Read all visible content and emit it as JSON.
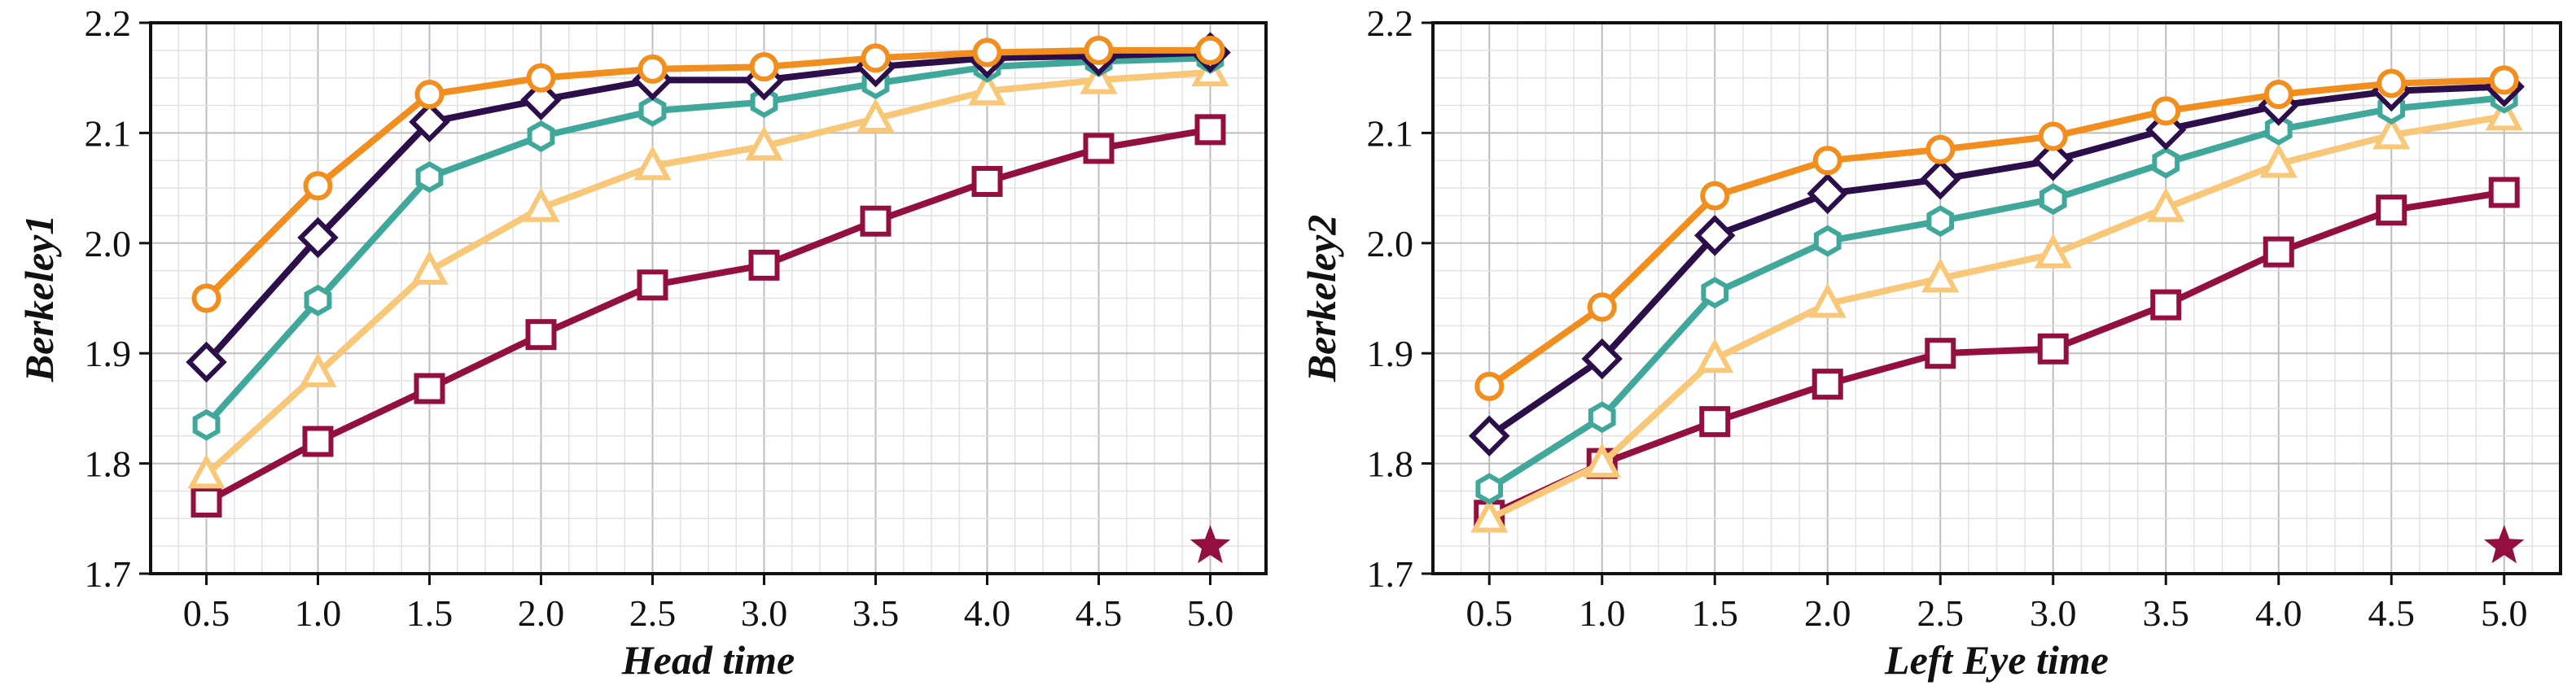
{
  "colors": {
    "orange": "#F28E1E",
    "navy": "#2C0F4A",
    "teal": "#3FA89B",
    "light_orange": "#F8C777",
    "crimson": "#930F3F",
    "grid_major": "#bdbdbd",
    "grid_minor": "#e2e2e2",
    "axis": "#111111"
  },
  "chart_data": [
    {
      "type": "line",
      "xlabel": "Head time",
      "ylabel": "Berkeley1",
      "x": [
        0.5,
        1.0,
        1.5,
        2.0,
        2.5,
        3.0,
        3.5,
        4.0,
        4.5,
        5.0
      ],
      "xtick_labels": [
        "0.5",
        "1.0",
        "1.5",
        "2.0",
        "2.5",
        "3.0",
        "3.5",
        "4.0",
        "4.5",
        "5.0"
      ],
      "ytick_values": [
        1.7,
        1.8,
        1.9,
        2.0,
        2.1,
        2.2
      ],
      "ytick_labels": [
        "1.7",
        "1.8",
        "1.9",
        "2.0",
        "2.1",
        "2.2"
      ],
      "xlim": [
        0.25,
        5.25
      ],
      "ylim": [
        1.7,
        2.2
      ],
      "grid": true,
      "series": [
        {
          "name": "crimson-square",
          "marker": "square",
          "color": "#930F3F",
          "values": [
            1.765,
            1.82,
            1.868,
            1.917,
            1.962,
            1.98,
            2.02,
            2.056,
            2.086,
            2.103
          ]
        },
        {
          "name": "light-orange-triangle",
          "marker": "triangle",
          "color": "#F8C777",
          "values": [
            1.79,
            1.882,
            1.975,
            2.032,
            2.07,
            2.088,
            2.113,
            2.138,
            2.148,
            2.155
          ]
        },
        {
          "name": "teal-hexagon",
          "marker": "hexagon",
          "color": "#3FA89B",
          "values": [
            1.835,
            1.948,
            2.06,
            2.097,
            2.12,
            2.128,
            2.145,
            2.16,
            2.165,
            2.168
          ]
        },
        {
          "name": "navy-diamond",
          "marker": "diamond",
          "color": "#2C0F4A",
          "values": [
            1.892,
            2.005,
            2.11,
            2.13,
            2.148,
            2.148,
            2.16,
            2.168,
            2.17,
            2.173
          ]
        },
        {
          "name": "orange-circle",
          "marker": "circle",
          "color": "#F28E1E",
          "values": [
            1.95,
            2.052,
            2.135,
            2.15,
            2.158,
            2.16,
            2.168,
            2.173,
            2.175,
            2.175
          ]
        }
      ],
      "annotations": [
        {
          "type": "star",
          "x": 5.0,
          "y": 1.725,
          "color": "#930F3F"
        }
      ]
    },
    {
      "type": "line",
      "xlabel": "Left Eye time",
      "ylabel": "Berkeley2",
      "x": [
        0.5,
        1.0,
        1.5,
        2.0,
        2.5,
        3.0,
        3.5,
        4.0,
        4.5,
        5.0
      ],
      "xtick_labels": [
        "0.5",
        "1.0",
        "1.5",
        "2.0",
        "2.5",
        "3.0",
        "3.5",
        "4.0",
        "4.5",
        "5.0"
      ],
      "ytick_values": [
        1.7,
        1.8,
        1.9,
        2.0,
        2.1,
        2.2
      ],
      "ytick_labels": [
        "1.7",
        "1.8",
        "1.9",
        "2.0",
        "2.1",
        "2.2"
      ],
      "xlim": [
        0.25,
        5.25
      ],
      "ylim": [
        1.7,
        2.2
      ],
      "grid": true,
      "series": [
        {
          "name": "crimson-square",
          "marker": "square",
          "color": "#930F3F",
          "values": [
            1.753,
            1.8,
            1.838,
            1.872,
            1.9,
            1.904,
            1.944,
            1.992,
            2.03,
            2.046
          ]
        },
        {
          "name": "light-orange-triangle",
          "marker": "triangle",
          "color": "#F8C777",
          "values": [
            1.75,
            1.8,
            1.895,
            1.945,
            1.968,
            1.99,
            2.032,
            2.072,
            2.098,
            2.115
          ]
        },
        {
          "name": "teal-hexagon",
          "marker": "hexagon",
          "color": "#3FA89B",
          "values": [
            1.777,
            1.842,
            1.955,
            2.002,
            2.02,
            2.04,
            2.073,
            2.103,
            2.122,
            2.132
          ]
        },
        {
          "name": "navy-diamond",
          "marker": "diamond",
          "color": "#2C0F4A",
          "values": [
            1.825,
            1.895,
            2.007,
            2.045,
            2.058,
            2.075,
            2.103,
            2.125,
            2.138,
            2.142
          ]
        },
        {
          "name": "orange-circle",
          "marker": "circle",
          "color": "#F28E1E",
          "values": [
            1.87,
            1.942,
            2.043,
            2.075,
            2.085,
            2.097,
            2.12,
            2.135,
            2.145,
            2.148
          ]
        }
      ],
      "annotations": [
        {
          "type": "star",
          "x": 5.0,
          "y": 1.725,
          "color": "#930F3F"
        }
      ]
    }
  ]
}
